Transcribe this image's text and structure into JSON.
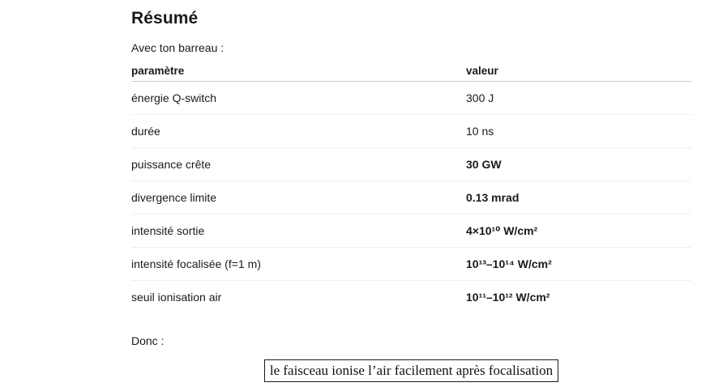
{
  "page": {
    "heading": "Résumé",
    "intro": "Avec ton barreau :",
    "conclusion_label": "Donc :",
    "boxed_conclusion": "le faisceau ionise l’air facilement après focalisation"
  },
  "table": {
    "headers": {
      "param": "paramètre",
      "value": "valeur"
    },
    "rows": [
      {
        "param": "énergie Q-switch",
        "value": "300 J"
      },
      {
        "param": "durée",
        "value": "10 ns"
      },
      {
        "param": "puissance crête",
        "value": "30 GW"
      },
      {
        "param": "divergence limite",
        "value": "0.13 mrad"
      },
      {
        "param": "intensité sortie",
        "value": "4×10¹⁰ W/cm²"
      },
      {
        "param": "intensité focalisée (f=1 m)",
        "value": "10¹³–10¹⁴ W/cm²"
      },
      {
        "param": "seuil ionisation air",
        "value": "10¹¹–10¹² W/cm²"
      }
    ]
  },
  "colors": {
    "text": "#1a1a1a",
    "header_rule": "#cfcfcf",
    "row_rule": "#efefef",
    "box_border": "#1a1a1a",
    "background": "#ffffff"
  }
}
